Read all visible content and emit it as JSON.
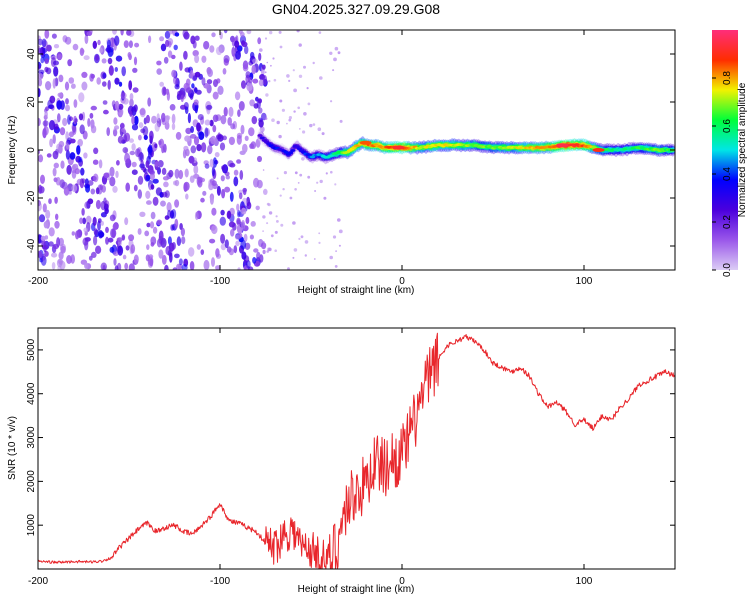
{
  "title": "GN04.2025.327.09.29.G08",
  "colors": {
    "signal": "#e8262b",
    "noise": "#6a1bd6",
    "axis": "#000000"
  },
  "chart_data": [
    {
      "type": "heatmap",
      "xlabel": "Height of straight line (km)",
      "ylabel": "Frequency (Hz)",
      "xlim": [
        -200,
        150
      ],
      "ylim": [
        -50,
        50
      ],
      "x_ticks": [
        -200,
        -100,
        0,
        100
      ],
      "x_tick_labels": [
        "-200",
        "-100",
        "0",
        "100"
      ],
      "y_ticks": [
        -40,
        -20,
        0,
        20,
        40
      ],
      "y_tick_labels": [
        "-40",
        "-20",
        "0",
        "20",
        "40"
      ],
      "colorbar": {
        "label": "Normalized spectral amplitude",
        "range": [
          0,
          1
        ],
        "ticks": [
          0.0,
          0.2,
          0.4,
          0.6,
          0.8
        ],
        "tick_labels": [
          "0.0",
          "0.2",
          "0.4",
          "0.6",
          "0.8"
        ],
        "stops": [
          "#dccdf5",
          "#9a57ea",
          "#4b00dd",
          "#0000ff",
          "#00e6e6",
          "#00ff3a",
          "#f2f200",
          "#ff2d00",
          "#ff2d7a"
        ]
      },
      "ridge": {
        "x": [
          -78,
          -74,
          -70,
          -66,
          -62,
          -58,
          -54,
          -50,
          -46,
          -42,
          -38,
          -34,
          -30,
          -26,
          -22,
          -18,
          -14,
          -10,
          -5,
          0,
          10,
          20,
          30,
          40,
          50,
          60,
          70,
          80,
          90,
          100,
          110,
          120,
          130,
          140,
          150
        ],
        "y": [
          6,
          3,
          1,
          0,
          -2,
          2,
          -1,
          -3,
          -2,
          -3,
          -2,
          -1,
          -1,
          1,
          3,
          2,
          2,
          1,
          1,
          1,
          1,
          2,
          2,
          2,
          1,
          1,
          1,
          1,
          2,
          2,
          0,
          0,
          1,
          0,
          0
        ],
        "amp": [
          0.25,
          0.3,
          0.35,
          0.3,
          0.35,
          0.3,
          0.35,
          0.4,
          0.45,
          0.5,
          0.55,
          0.6,
          0.7,
          0.75,
          0.75,
          0.8,
          0.8,
          0.8,
          0.85,
          0.9,
          0.7,
          0.75,
          0.7,
          0.65,
          0.65,
          0.7,
          0.75,
          0.8,
          0.9,
          0.85,
          0.6,
          0.55,
          0.6,
          0.65,
          0.6
        ]
      }
    },
    {
      "type": "line",
      "xlabel": "Height of straight line (km)",
      "ylabel": "SNR (10 * v/v)",
      "xlim": [
        -200,
        150
      ],
      "ylim": [
        0,
        5500
      ],
      "x_ticks": [
        -200,
        -100,
        0,
        100
      ],
      "x_tick_labels": [
        "-200",
        "-100",
        "0",
        "100"
      ],
      "y_ticks": [
        1000,
        2000,
        3000,
        4000,
        5000
      ],
      "y_tick_labels": [
        "1000",
        "2000",
        "3000",
        "4000",
        "5000"
      ],
      "series": [
        {
          "name": "SNR",
          "x": [
            -200,
            -190,
            -180,
            -170,
            -165,
            -160,
            -155,
            -150,
            -145,
            -140,
            -135,
            -130,
            -125,
            -120,
            -115,
            -110,
            -105,
            -100,
            -95,
            -90,
            -85,
            -80,
            -75,
            -70,
            -65,
            -60,
            -55,
            -50,
            -45,
            -40,
            -35,
            -30,
            -25,
            -20,
            -15,
            -10,
            -5,
            0,
            5,
            10,
            15,
            20,
            25,
            30,
            35,
            40,
            45,
            50,
            55,
            60,
            65,
            70,
            75,
            80,
            85,
            90,
            95,
            100,
            105,
            110,
            115,
            120,
            125,
            130,
            135,
            140,
            145,
            150
          ],
          "values": [
            180,
            150,
            170,
            160,
            180,
            250,
            500,
            700,
            900,
            1050,
            850,
            950,
            1000,
            850,
            800,
            1000,
            1200,
            1500,
            1100,
            1050,
            950,
            850,
            600,
            500,
            800,
            900,
            500,
            450,
            300,
            150,
            700,
            1500,
            1800,
            1900,
            2500,
            2300,
            2500,
            2600,
            3100,
            3800,
            4400,
            4800,
            5100,
            5200,
            5300,
            5200,
            5000,
            4700,
            4600,
            4500,
            4600,
            4400,
            4000,
            3700,
            3800,
            3600,
            3300,
            3400,
            3200,
            3500,
            3400,
            3700,
            3900,
            4200,
            4300,
            4400,
            4500,
            4400
          ]
        }
      ]
    }
  ]
}
